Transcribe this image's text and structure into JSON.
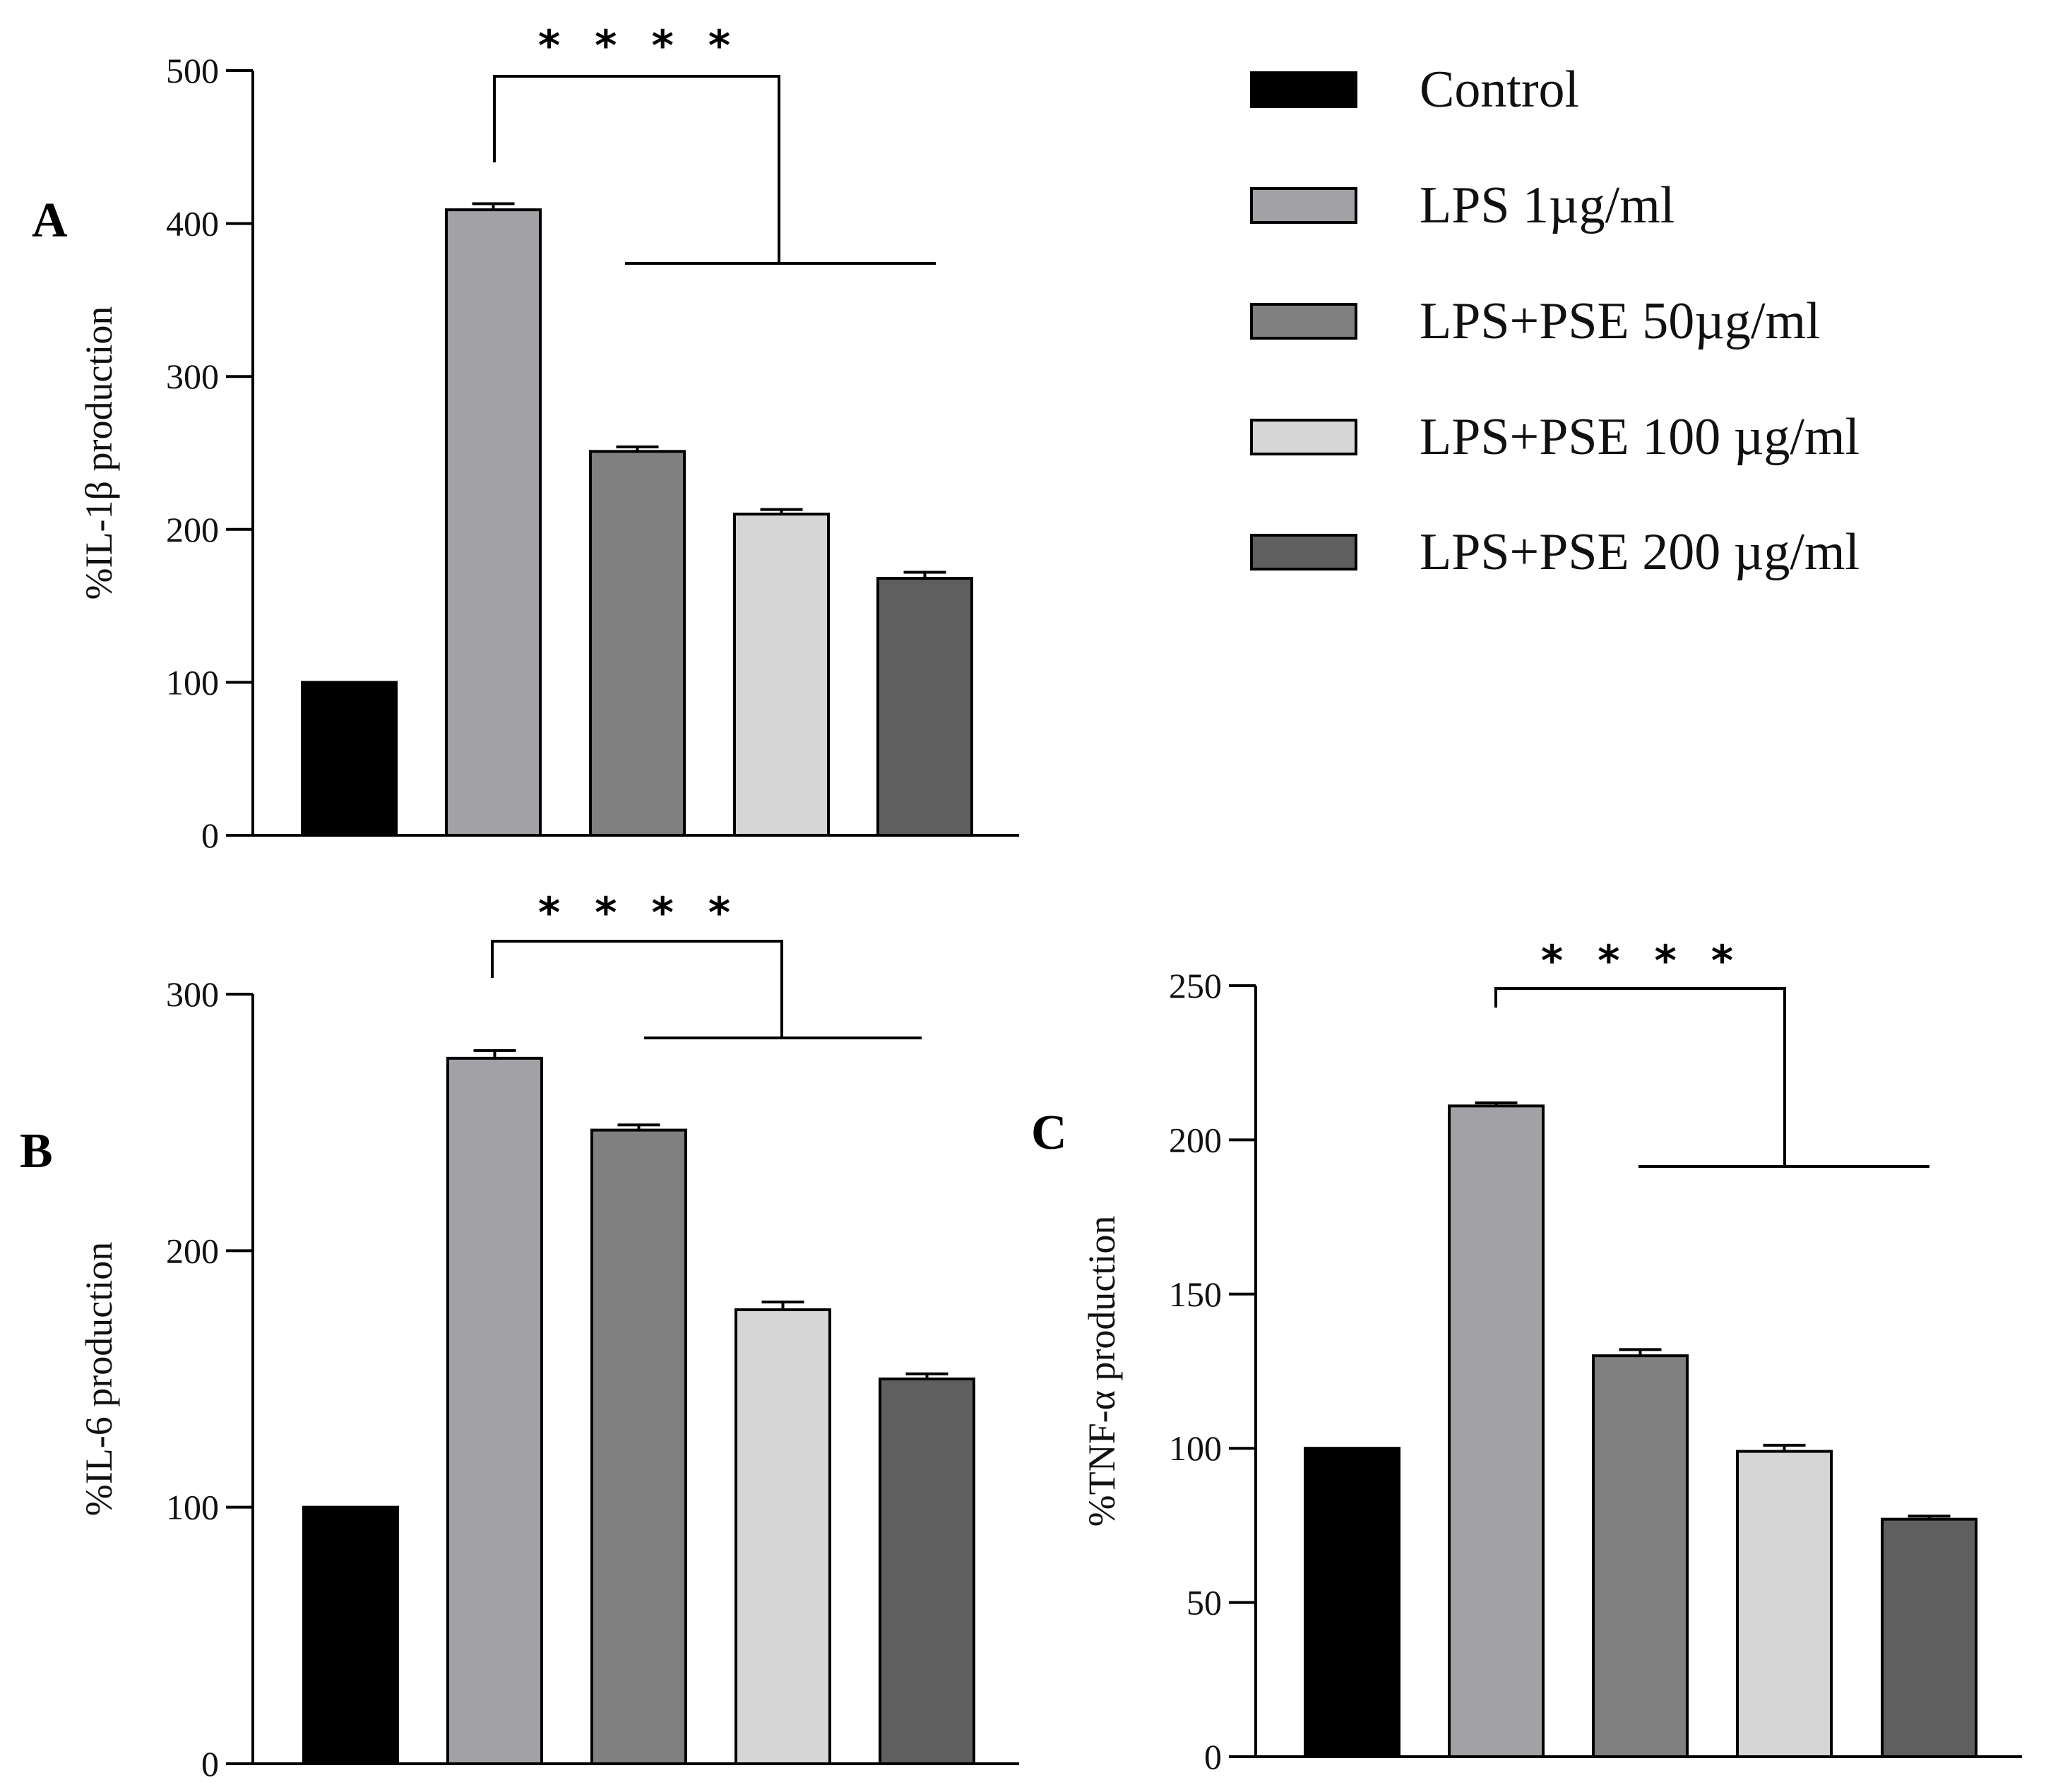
{
  "chart_data": [
    {
      "type": "bar",
      "panel": "A",
      "ylabel": "%IL-1β production",
      "ylim": [
        0,
        500
      ],
      "ticks": [
        0,
        100,
        200,
        300,
        400,
        500
      ],
      "categories": [
        "Control",
        "LPS 1µg/ml",
        "LPS+PSE 50µg/ml",
        "LPS+PSE 100 µg/ml",
        "LPS+PSE 200 µg/ml"
      ],
      "values": [
        100,
        409,
        251,
        210,
        168
      ],
      "errors": [
        0,
        4,
        3,
        3,
        4
      ],
      "significance": "* * * *"
    },
    {
      "type": "bar",
      "panel": "B",
      "ylabel": "%IL-6 production",
      "ylim": [
        0,
        300
      ],
      "ticks": [
        0,
        100,
        200,
        300
      ],
      "categories": [
        "Control",
        "LPS 1µg/ml",
        "LPS+PSE 50µg/ml",
        "LPS+PSE 100 µg/ml",
        "LPS+PSE 200 µg/ml"
      ],
      "values": [
        100,
        275,
        247,
        177,
        150
      ],
      "errors": [
        0,
        3,
        2,
        3,
        2
      ],
      "significance": "* * * *"
    },
    {
      "type": "bar",
      "panel": "C",
      "ylabel": "%TNF-α production",
      "ylim": [
        0,
        250
      ],
      "ticks": [
        0,
        50,
        100,
        150,
        200,
        250
      ],
      "categories": [
        "Control",
        "LPS 1µg/ml",
        "LPS+PSE 50µg/ml",
        "LPS+PSE 100 µg/ml",
        "LPS+PSE 200 µg/ml"
      ],
      "values": [
        100,
        211,
        130,
        99,
        77
      ],
      "errors": [
        0,
        1,
        2,
        2,
        1
      ],
      "significance": "* * * *"
    }
  ],
  "legend": [
    {
      "label": "Control",
      "color": "#000000"
    },
    {
      "label": "LPS 1µg/ml",
      "color": "#a2a2a6"
    },
    {
      "label": "LPS+PSE 50µg/ml",
      "color": "#808080"
    },
    {
      "label": "LPS+PSE 100 µg/ml",
      "color": "#d6d6d6"
    },
    {
      "label": "LPS+PSE 200 µg/ml",
      "color": "#5f5f5f"
    }
  ]
}
